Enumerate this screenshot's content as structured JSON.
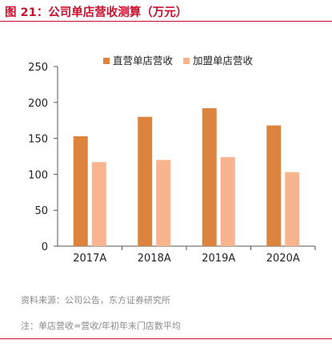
{
  "figure": {
    "title": "图 21：公司单店营收测算（万元）",
    "source": "资料来源：公司公告，东方证券研究所",
    "note": "注：单店营收=营收/年初年末门店数平均",
    "accent_color": "#c8102e"
  },
  "chart_data": {
    "type": "bar",
    "title": "",
    "xlabel": "",
    "ylabel": "",
    "categories": [
      "2017A",
      "2018A",
      "2019A",
      "2020A"
    ],
    "series": [
      {
        "name": "直营单店营收",
        "values": [
          153,
          180,
          192,
          168
        ],
        "color": "#dc843d"
      },
      {
        "name": "加盟单店营收",
        "values": [
          117,
          120,
          124,
          103
        ],
        "color": "#f8b48e"
      }
    ],
    "ylim": [
      0,
      250
    ],
    "yticks": [
      0,
      50,
      100,
      150,
      200,
      250
    ],
    "grid": false,
    "legend_position": "top-right"
  }
}
